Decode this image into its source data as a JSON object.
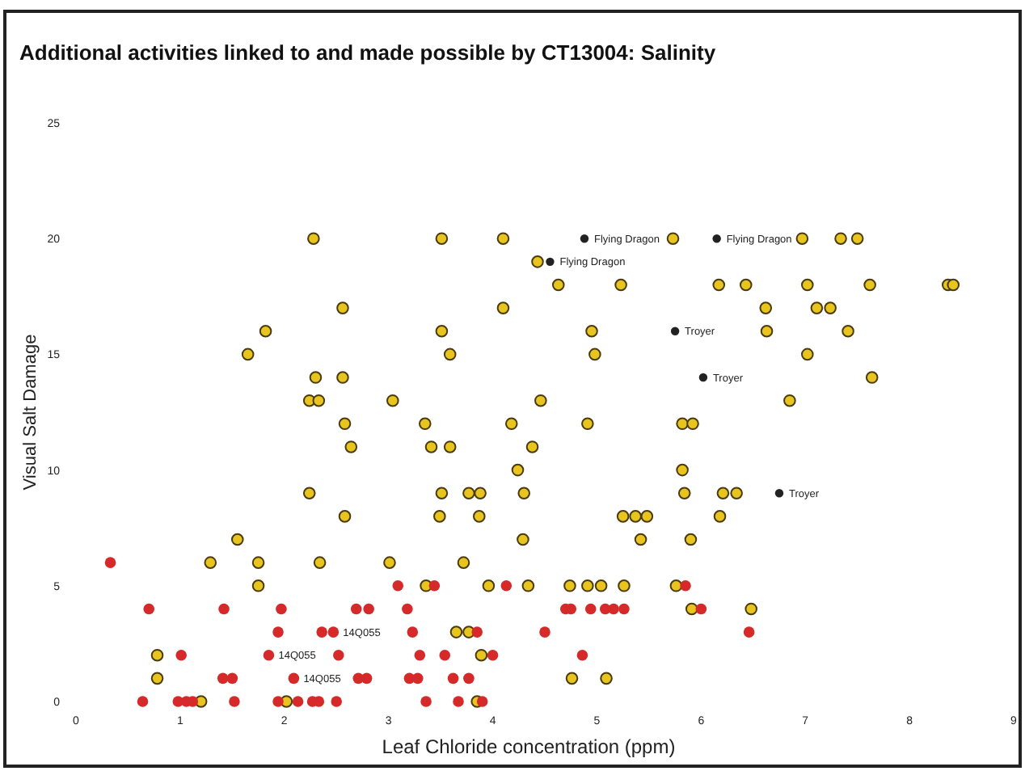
{
  "chart_data": {
    "type": "scatter",
    "title": "Additional activities linked to and made possible by CT13004: Salinity",
    "xlabel": "Leaf Chloride concentration (ppm)",
    "ylabel": "Visual Salt Damage",
    "xlim": [
      0,
      9
    ],
    "xticks": [
      0,
      1,
      2,
      3,
      4,
      5,
      6,
      7,
      8,
      9
    ],
    "ylim": [
      0,
      25
    ],
    "yticks": [
      0,
      5,
      10,
      15,
      20,
      25
    ],
    "marker": "circle",
    "series": [
      {
        "color": "#e8c51e",
        "x": [
          2.28,
          3.51,
          4.1,
          5.73,
          6.97,
          7.34,
          7.5,
          4.43,
          4.63,
          5.23,
          6.17,
          6.43,
          7.02,
          7.62,
          8.37,
          8.42,
          2.56,
          4.1,
          6.62,
          7.11,
          7.24,
          1.82,
          3.51,
          4.95,
          6.63,
          7.41,
          1.65,
          3.59,
          4.98,
          7.02,
          2.3,
          2.56,
          7.64,
          2.24,
          2.33,
          3.04,
          4.46,
          6.85,
          2.58,
          3.35,
          4.18,
          4.91,
          5.82,
          5.92,
          2.64,
          3.41,
          3.59,
          4.38,
          4.24,
          5.82,
          2.24,
          3.51,
          3.77,
          3.88,
          4.3,
          5.84,
          6.21,
          6.34,
          2.58,
          3.49,
          3.87,
          5.25,
          5.37,
          5.48,
          6.18,
          1.55,
          4.29,
          5.42,
          5.9,
          1.29,
          1.75,
          2.34,
          3.01,
          3.72,
          1.75,
          3.36,
          3.96,
          4.34,
          4.74,
          4.91,
          5.04,
          5.26,
          5.76,
          5.91,
          6.48,
          3.65,
          3.77,
          0.78,
          3.89,
          0.78,
          4.76,
          5.09,
          1.2,
          2.02,
          3.85
        ],
        "values": [
          20,
          20,
          20,
          20,
          20,
          20,
          20,
          19,
          18,
          18,
          18,
          18,
          18,
          18,
          18,
          18,
          17,
          17,
          17,
          17,
          17,
          16,
          16,
          16,
          16,
          16,
          15,
          15,
          15,
          15,
          14,
          14,
          14,
          13,
          13,
          13,
          13,
          13,
          12,
          12,
          12,
          12,
          12,
          12,
          11,
          11,
          11,
          11,
          10,
          10,
          9,
          9,
          9,
          9,
          9,
          9,
          9,
          9,
          8,
          8,
          8,
          8,
          8,
          8,
          8,
          7,
          7,
          7,
          7,
          6,
          6,
          6,
          6,
          6,
          5,
          5,
          5,
          5,
          5,
          5,
          5,
          5,
          5,
          4,
          4,
          3,
          3,
          2,
          2,
          1,
          1,
          1,
          0,
          0,
          0
        ]
      },
      {
        "color": "#d62a2a",
        "x": [
          0.33,
          3.09,
          3.44,
          4.13,
          5.85,
          0.7,
          1.42,
          1.97,
          2.69,
          2.81,
          3.18,
          4.7,
          4.75,
          4.94,
          5.08,
          5.16,
          5.26,
          6.0,
          1.94,
          2.36,
          2.47,
          3.23,
          3.85,
          4.5,
          6.46,
          1.01,
          1.85,
          2.52,
          3.3,
          3.54,
          4.0,
          4.86,
          1.41,
          1.5,
          2.09,
          2.71,
          2.79,
          3.2,
          3.28,
          3.62,
          3.77,
          0.64,
          0.98,
          1.06,
          1.12,
          1.52,
          1.94,
          2.13,
          2.27,
          2.33,
          2.5,
          3.36,
          3.67,
          3.9
        ],
        "values": [
          6,
          5,
          5,
          5,
          5,
          4,
          4,
          4,
          4,
          4,
          4,
          4,
          4,
          4,
          4,
          4,
          4,
          4,
          3,
          3,
          3,
          3,
          3,
          3,
          3,
          2,
          2,
          2,
          2,
          2,
          2,
          2,
          1,
          1,
          1,
          1,
          1,
          1,
          1,
          1,
          1,
          0,
          0,
          0,
          0,
          0,
          0,
          0,
          0,
          0,
          0,
          0,
          0,
          0
        ]
      },
      {
        "color": "#222222",
        "x": [
          4.88,
          6.15,
          4.55,
          5.75,
          6.02,
          6.75
        ],
        "values": [
          20,
          20,
          19,
          16,
          14,
          9
        ]
      }
    ],
    "annotations": [
      {
        "text": "Flying Dragon",
        "x": 4.88,
        "y": 20
      },
      {
        "text": "Flying Dragon",
        "x": 6.15,
        "y": 20
      },
      {
        "text": "Flying Dragon",
        "x": 4.55,
        "y": 19
      },
      {
        "text": "Troyer",
        "x": 5.75,
        "y": 16
      },
      {
        "text": "Troyer",
        "x": 6.02,
        "y": 14
      },
      {
        "text": "Troyer",
        "x": 6.75,
        "y": 9
      },
      {
        "text": "14Q055",
        "x": 2.47,
        "y": 3
      },
      {
        "text": "14Q055",
        "x": 1.85,
        "y": 2
      },
      {
        "text": "14Q055",
        "x": 2.09,
        "y": 1
      }
    ]
  }
}
